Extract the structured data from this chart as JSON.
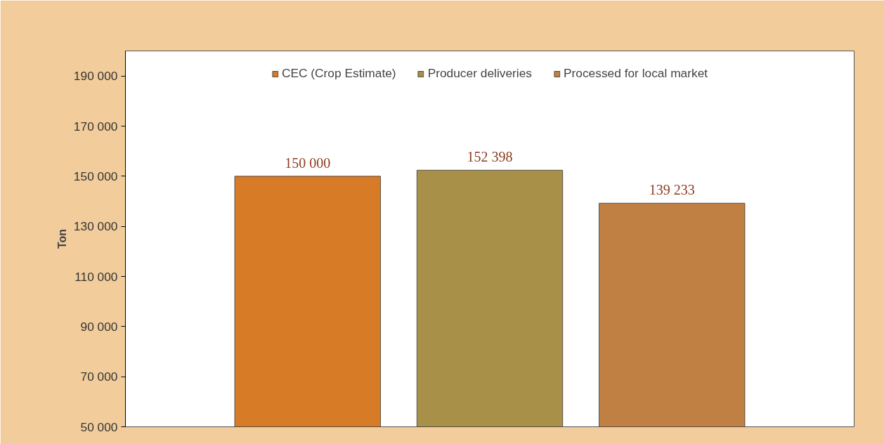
{
  "chart_data": {
    "type": "bar",
    "ylabel": "Ton",
    "categories": [
      null
    ],
    "series": [
      {
        "name": "CEC (Crop Estimate)",
        "color": "#d77b26",
        "values": [
          150000
        ],
        "value_labels": [
          "150 000"
        ]
      },
      {
        "name": "Producer deliveries",
        "color": "#a89048",
        "values": [
          152398
        ],
        "value_labels": [
          "152 398"
        ]
      },
      {
        "name": "Processed for local market",
        "color": "#c08043",
        "values": [
          139233
        ],
        "value_labels": [
          "139 233"
        ]
      }
    ],
    "ylim": [
      50000,
      200000
    ],
    "yticks": [
      {
        "value": 50000,
        "label": "50 000"
      },
      {
        "value": 70000,
        "label": "70 000"
      },
      {
        "value": 90000,
        "label": "90 000"
      },
      {
        "value": 110000,
        "label": "110 000"
      },
      {
        "value": 130000,
        "label": "130 000"
      },
      {
        "value": 150000,
        "label": "150 000"
      },
      {
        "value": 170000,
        "label": "170 000"
      },
      {
        "value": 190000,
        "label": "190 000"
      }
    ],
    "tick_labels": "y",
    "grid": false,
    "legend": "top"
  }
}
